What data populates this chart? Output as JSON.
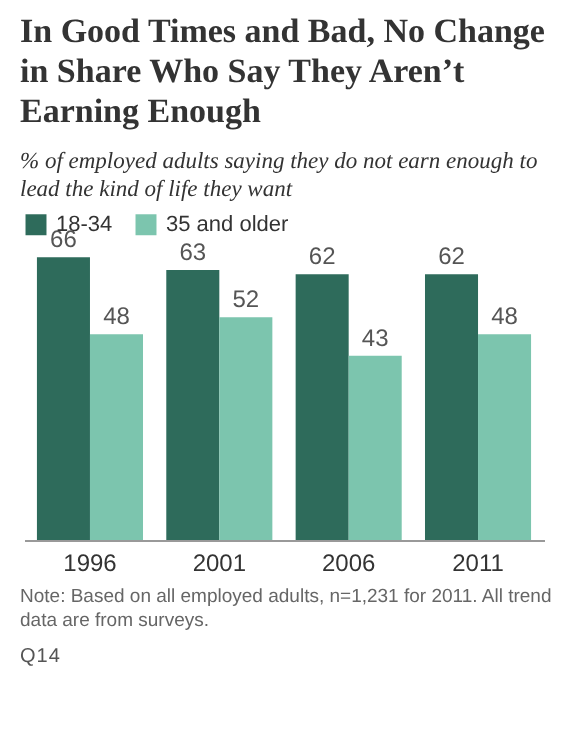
{
  "chart_data": {
    "type": "bar",
    "title": "In Good Times and Bad, No Change in Share Who Say They Aren’t Earning Enough",
    "subtitle": "% of employed adults saying they do not earn enough to lead the kind of life they want",
    "categories": [
      "1996",
      "2001",
      "2006",
      "2011"
    ],
    "series": [
      {
        "name": "18-34",
        "color": "#2e6b5b",
        "values": [
          66,
          63,
          62,
          62
        ]
      },
      {
        "name": "35 and older",
        "color": "#7cc5ae",
        "values": [
          48,
          52,
          43,
          48
        ]
      }
    ],
    "data_labels": true,
    "legend": "top left",
    "grid": false,
    "annotations": [
      "Note: Based on all employed adults, n=1,231 for 2011. All trend data are from surveys.",
      "Q14"
    ]
  }
}
